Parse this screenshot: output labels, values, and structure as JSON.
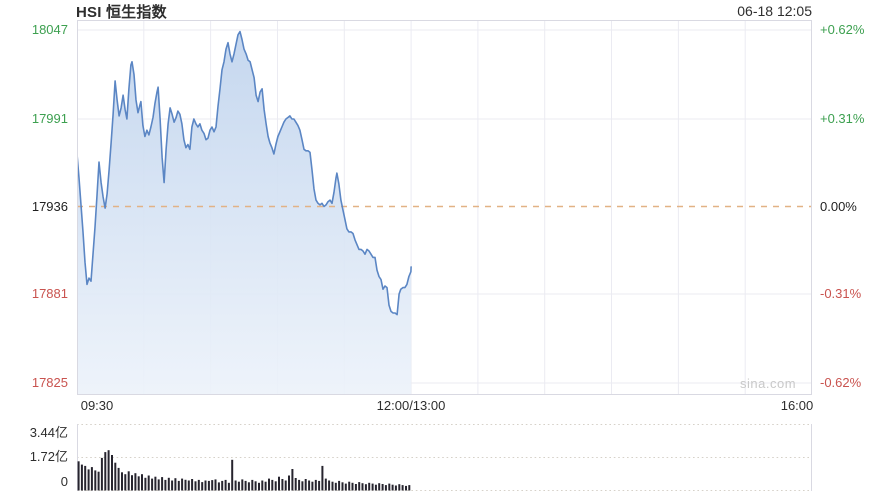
{
  "header": {
    "title": "HSI 恒生指数",
    "datetime": "06-18 12:05"
  },
  "watermark": "sina.com",
  "colors": {
    "up": "#3da050",
    "down": "#c9534f",
    "flat": "#1f1f1f",
    "text": "#2e2e2e",
    "line": "#5b86c4",
    "fill-top": "#c2d5ee",
    "fill-bottom": "#ecf2fa",
    "prev-dash": "#e2b285",
    "vol-bar": "#26242e",
    "vol-grid": "#d6d1c9",
    "grid": "#ebebf2",
    "border": "#d9d9e2",
    "watermark-color": "#c9c9c9"
  },
  "chart_data": {
    "type": "line",
    "title": "HSI 恒生指数",
    "as_of": "06-18 12:05",
    "prev_close": 17936,
    "y_top_value": 18047,
    "y_bottom_value": 17825,
    "x_axis": {
      "total_minutes": 330,
      "gridline_every_minutes": 30,
      "labels": [
        {
          "text": "09:30"
        },
        {
          "text": "12:00/13:00"
        },
        {
          "text": "16:00"
        }
      ]
    },
    "y_axis_left": {
      "labels": [
        {
          "text": "18047",
          "value": 18047,
          "tone": "up"
        },
        {
          "text": "17991",
          "value": 17991,
          "tone": "up"
        },
        {
          "text": "17936",
          "value": 17936,
          "tone": "flat"
        },
        {
          "text": "17881",
          "value": 17881,
          "tone": "down"
        },
        {
          "text": "17825",
          "value": 17825,
          "tone": "down"
        }
      ]
    },
    "y_axis_right": {
      "labels": [
        {
          "text": "+0.62%",
          "tone": "up"
        },
        {
          "text": "+0.31%",
          "tone": "up"
        },
        {
          "text": "0.00%",
          "tone": "flat"
        },
        {
          "text": "-0.31%",
          "tone": "down"
        },
        {
          "text": "-0.62%",
          "tone": "down"
        }
      ]
    },
    "price_series": [
      [
        0,
        17969
      ],
      [
        0.9,
        17954
      ],
      [
        1.8,
        17937
      ],
      [
        2.7,
        17920
      ],
      [
        3.6,
        17901
      ],
      [
        4.5,
        17887
      ],
      [
        5.4,
        17891
      ],
      [
        6.3,
        17889
      ],
      [
        7.2,
        17906
      ],
      [
        8.1,
        17923
      ],
      [
        9,
        17943
      ],
      [
        9.9,
        17964
      ],
      [
        10.8,
        17951
      ],
      [
        11.7,
        17942
      ],
      [
        12.6,
        17935
      ],
      [
        13.5,
        17944
      ],
      [
        14.4,
        17959
      ],
      [
        15.3,
        17976
      ],
      [
        16.2,
        17994
      ],
      [
        17.1,
        18015
      ],
      [
        18,
        18003
      ],
      [
        18.9,
        17993
      ],
      [
        19.8,
        17998
      ],
      [
        20.7,
        18006
      ],
      [
        21.6,
        17997
      ],
      [
        22.4,
        17991
      ],
      [
        23.3,
        18010
      ],
      [
        24.2,
        18025
      ],
      [
        24.7,
        18027
      ],
      [
        25.6,
        18019
      ],
      [
        26.5,
        18003
      ],
      [
        27.4,
        17995
      ],
      [
        28.3,
        18000
      ],
      [
        28.7,
        18002
      ],
      [
        29.6,
        17987
      ],
      [
        30.5,
        17980
      ],
      [
        31.4,
        17984
      ],
      [
        32.3,
        17981
      ],
      [
        33.2,
        17986
      ],
      [
        34.1,
        17992
      ],
      [
        35,
        18001
      ],
      [
        35.9,
        18008
      ],
      [
        36.4,
        18011
      ],
      [
        37.3,
        17991
      ],
      [
        38.2,
        17967
      ],
      [
        39.1,
        17951
      ],
      [
        40,
        17972
      ],
      [
        40.9,
        17988
      ],
      [
        41.8,
        17998
      ],
      [
        42.7,
        17994
      ],
      [
        43.6,
        17989
      ],
      [
        44.5,
        17992
      ],
      [
        45.3,
        17996
      ],
      [
        46.2,
        17994
      ],
      [
        47.1,
        17988
      ],
      [
        48,
        17978
      ],
      [
        48.9,
        17973
      ],
      [
        49.8,
        17975
      ],
      [
        50.7,
        17972
      ],
      [
        51.6,
        17986
      ],
      [
        52.5,
        17991
      ],
      [
        53.4,
        17988
      ],
      [
        54.3,
        17986
      ],
      [
        55.2,
        17988
      ],
      [
        56.1,
        17984
      ],
      [
        57,
        17982
      ],
      [
        57.9,
        17978
      ],
      [
        58.8,
        17979
      ],
      [
        59.7,
        17984
      ],
      [
        60.6,
        17986
      ],
      [
        61.5,
        17983
      ],
      [
        62.4,
        17986
      ],
      [
        63.3,
        17999
      ],
      [
        64.2,
        18010
      ],
      [
        65.1,
        18022
      ],
      [
        66,
        18027
      ],
      [
        66.9,
        18035
      ],
      [
        67.8,
        18039
      ],
      [
        68.7,
        18032
      ],
      [
        69.6,
        18027
      ],
      [
        70.5,
        18032
      ],
      [
        71.4,
        18038
      ],
      [
        72.3,
        18044
      ],
      [
        73.2,
        18046
      ],
      [
        74.1,
        18041
      ],
      [
        75,
        18035
      ],
      [
        75.9,
        18032
      ],
      [
        76.8,
        18028
      ],
      [
        77.7,
        18027
      ],
      [
        78.6,
        18022
      ],
      [
        79.5,
        18017
      ],
      [
        80.4,
        18006
      ],
      [
        81.3,
        18002
      ],
      [
        82.2,
        18008
      ],
      [
        83.1,
        18010
      ],
      [
        84,
        17997
      ],
      [
        84.9,
        17988
      ],
      [
        85.8,
        17980
      ],
      [
        86.6,
        17976
      ],
      [
        87.5,
        17973
      ],
      [
        88.4,
        17969
      ],
      [
        89.3,
        17975
      ],
      [
        90.2,
        17980
      ],
      [
        91.1,
        17983
      ],
      [
        92,
        17986
      ],
      [
        92.9,
        17989
      ],
      [
        93.8,
        17991
      ],
      [
        94.7,
        17992
      ],
      [
        95.6,
        17993
      ],
      [
        96.5,
        17991
      ],
      [
        97.4,
        17991
      ],
      [
        98.3,
        17989
      ],
      [
        99.2,
        17987
      ],
      [
        100.1,
        17984
      ],
      [
        101,
        17978
      ],
      [
        101.9,
        17972
      ],
      [
        102.8,
        17971
      ],
      [
        103.7,
        17971
      ],
      [
        104.6,
        17970
      ],
      [
        105.5,
        17959
      ],
      [
        106.4,
        17947
      ],
      [
        107.3,
        17940
      ],
      [
        108.2,
        17938
      ],
      [
        109.1,
        17937
      ],
      [
        110,
        17938
      ],
      [
        110.9,
        17936
      ],
      [
        111.8,
        17937
      ],
      [
        112.7,
        17939
      ],
      [
        113.6,
        17940
      ],
      [
        114.5,
        17938
      ],
      [
        115.4,
        17945
      ],
      [
        116.3,
        17954
      ],
      [
        116.7,
        17957
      ],
      [
        117.6,
        17950
      ],
      [
        118.5,
        17940
      ],
      [
        119.4,
        17934
      ],
      [
        120.3,
        17928
      ],
      [
        121.2,
        17922
      ],
      [
        122.1,
        17920
      ],
      [
        123,
        17920
      ],
      [
        123.9,
        17919
      ],
      [
        124.8,
        17915
      ],
      [
        125.7,
        17912
      ],
      [
        126.6,
        17909
      ],
      [
        127.5,
        17909
      ],
      [
        128.4,
        17908
      ],
      [
        129.3,
        17906
      ],
      [
        130.2,
        17909
      ],
      [
        131.1,
        17908
      ],
      [
        132,
        17906
      ],
      [
        132.9,
        17904
      ],
      [
        133.8,
        17904
      ],
      [
        134.7,
        17896
      ],
      [
        135.6,
        17892
      ],
      [
        136.5,
        17890
      ],
      [
        137.4,
        17884
      ],
      [
        138.3,
        17886
      ],
      [
        139.2,
        17885
      ],
      [
        140.1,
        17874
      ],
      [
        141,
        17870
      ],
      [
        141.9,
        17869
      ],
      [
        142.8,
        17869
      ],
      [
        143.7,
        17868
      ],
      [
        144.6,
        17881
      ],
      [
        145.4,
        17884
      ],
      [
        146.3,
        17885
      ],
      [
        147.2,
        17885
      ],
      [
        148.1,
        17887
      ],
      [
        149,
        17892
      ],
      [
        149.9,
        17895
      ],
      [
        150,
        17898
      ]
    ],
    "volume_axis": {
      "max_value": 3.44,
      "labels": [
        {
          "text": "3.44亿",
          "value": 3.44
        },
        {
          "text": "1.72亿",
          "value": 1.72
        },
        {
          "text": "0",
          "value": 0
        }
      ]
    },
    "volume_series": {
      "unit": "亿",
      "start_minute": 0.7,
      "step_minutes": 1.5,
      "values": [
        1.52,
        1.35,
        1.28,
        1.1,
        1.22,
        1.05,
        0.98,
        1.7,
        2.0,
        2.1,
        1.85,
        1.45,
        1.18,
        0.95,
        0.85,
        1.0,
        0.8,
        0.9,
        0.74,
        0.85,
        0.66,
        0.78,
        0.62,
        0.72,
        0.58,
        0.7,
        0.55,
        0.66,
        0.52,
        0.64,
        0.5,
        0.62,
        0.56,
        0.52,
        0.6,
        0.48,
        0.55,
        0.44,
        0.52,
        0.5,
        0.54,
        0.58,
        0.42,
        0.5,
        0.55,
        0.4,
        1.6,
        0.52,
        0.46,
        0.58,
        0.5,
        0.43,
        0.55,
        0.48,
        0.4,
        0.52,
        0.46,
        0.62,
        0.55,
        0.48,
        0.72,
        0.6,
        0.52,
        0.78,
        1.12,
        0.65,
        0.55,
        0.48,
        0.6,
        0.52,
        0.46,
        0.55,
        0.5,
        1.28,
        0.62,
        0.52,
        0.46,
        0.4,
        0.5,
        0.43,
        0.36,
        0.46,
        0.4,
        0.34,
        0.44,
        0.38,
        0.33,
        0.4,
        0.36,
        0.3,
        0.38,
        0.34,
        0.28,
        0.36,
        0.3,
        0.26,
        0.33,
        0.28,
        0.24,
        0.28
      ]
    }
  }
}
